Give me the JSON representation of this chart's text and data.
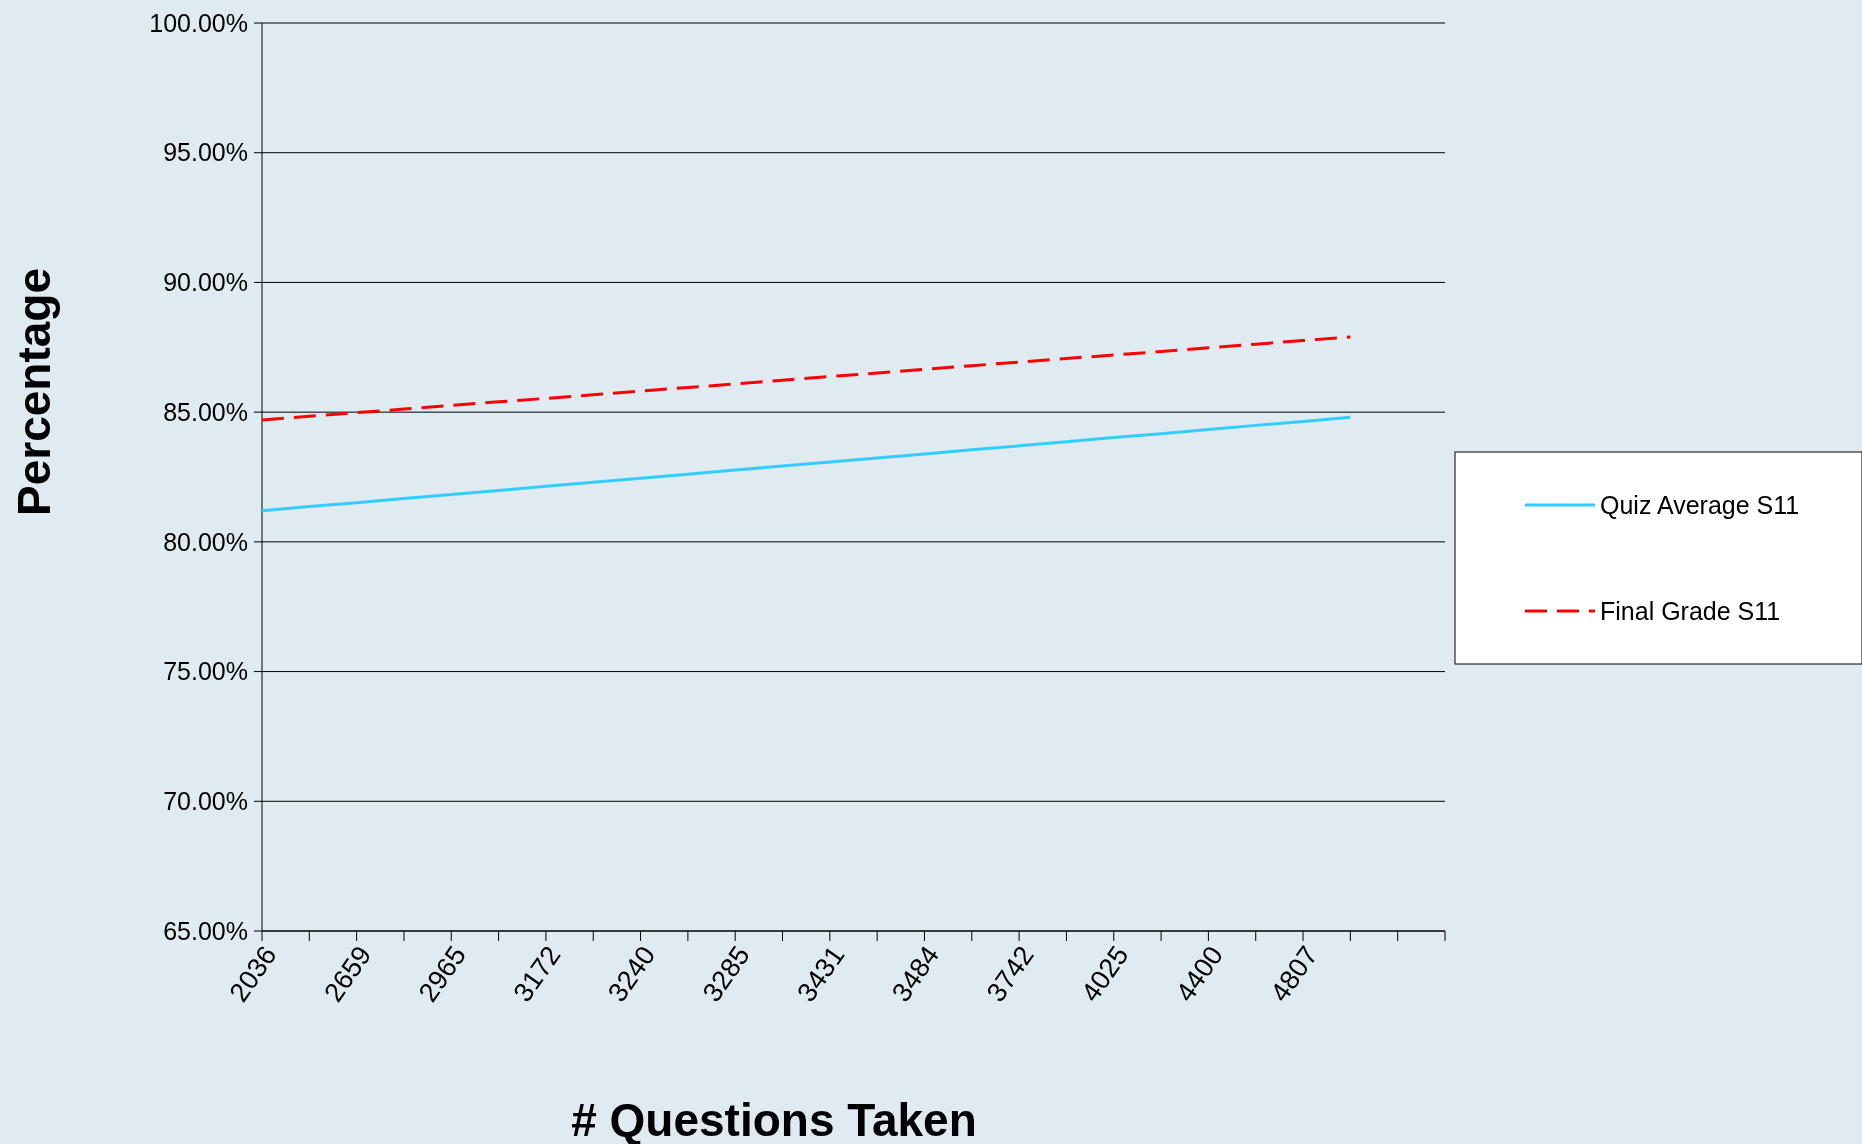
{
  "chart_data": {
    "type": "line",
    "xlabel": "# Questions Taken",
    "ylabel": "Percentage",
    "categories": [
      "2036",
      null,
      "2659",
      null,
      "2965",
      null,
      "3172",
      null,
      "3240",
      null,
      "3285",
      null,
      "3431",
      null,
      "3484",
      null,
      "3742",
      null,
      "4025",
      null,
      "4400",
      null,
      "4807",
      null,
      null,
      null
    ],
    "series": [
      {
        "name": "Quiz Average S11",
        "color": "#33ccff",
        "line_style": "solid",
        "values": [
          81.2,
          81.36,
          81.51,
          81.67,
          81.83,
          81.98,
          82.14,
          82.3,
          82.45,
          82.61,
          82.77,
          82.92,
          83.08,
          83.23,
          83.39,
          83.55,
          83.7,
          83.86,
          84.02,
          84.17,
          84.33,
          84.49,
          84.64,
          84.8,
          null,
          null
        ]
      },
      {
        "name": "Final Grade S11",
        "color": "#ff0000",
        "line_style": "dashed",
        "values": [
          84.7,
          84.84,
          84.98,
          85.12,
          85.26,
          85.4,
          85.53,
          85.67,
          85.81,
          85.95,
          86.09,
          86.23,
          86.37,
          86.51,
          86.65,
          86.79,
          86.93,
          87.07,
          87.2,
          87.34,
          87.48,
          87.62,
          87.76,
          87.9,
          null,
          null
        ]
      }
    ],
    "ylim": [
      65,
      100
    ],
    "yticks": [
      {
        "value": 65,
        "label": "65.00%"
      },
      {
        "value": 70,
        "label": "70.00%"
      },
      {
        "value": 75,
        "label": "75.00%"
      },
      {
        "value": 80,
        "label": "80.00%"
      },
      {
        "value": 85,
        "label": "85.00%"
      },
      {
        "value": 90,
        "label": "90.00%"
      },
      {
        "value": 95,
        "label": "95.00%"
      },
      {
        "value": 100,
        "label": "100.00%"
      }
    ],
    "grid": "y",
    "legend": "right"
  }
}
